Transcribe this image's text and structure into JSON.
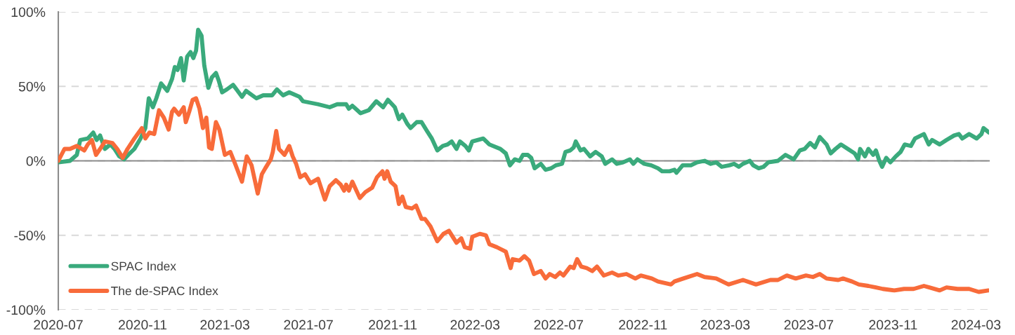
{
  "chart_data": {
    "type": "line",
    "series": [
      {
        "name": "SPAC Index",
        "color": "#3aaa7c",
        "x": [
          "2020-07-01",
          "2020-07-18",
          "2020-07-28",
          "2020-08-02",
          "2020-08-13",
          "2020-08-21",
          "2020-08-26",
          "2020-08-31",
          "2020-09-07",
          "2020-09-15",
          "2020-09-21",
          "2020-09-28",
          "2020-10-05",
          "2020-10-11",
          "2020-10-20",
          "2020-10-29",
          "2020-11-05",
          "2020-11-10",
          "2020-11-16",
          "2020-11-21",
          "2020-11-28",
          "2020-12-07",
          "2020-12-14",
          "2020-12-18",
          "2020-12-22",
          "2020-12-27",
          "2020-12-31",
          "2021-01-05",
          "2021-01-10",
          "2021-01-14",
          "2021-01-18",
          "2021-01-21",
          "2021-01-26",
          "2021-01-30",
          "2021-02-05",
          "2021-02-10",
          "2021-02-16",
          "2021-02-20",
          "2021-02-25",
          "2021-03-04",
          "2021-03-13",
          "2021-03-18",
          "2021-03-26",
          "2021-04-01",
          "2021-04-16",
          "2021-04-26",
          "2021-05-09",
          "2021-05-16",
          "2021-05-25",
          "2021-06-03",
          "2021-06-18",
          "2021-06-23",
          "2021-07-15",
          "2021-08-01",
          "2021-08-12",
          "2021-08-25",
          "2021-08-29",
          "2021-09-03",
          "2021-09-15",
          "2021-09-27",
          "2021-10-08",
          "2021-10-18",
          "2021-10-25",
          "2021-11-04",
          "2021-11-10",
          "2021-11-15",
          "2021-11-22",
          "2021-11-27",
          "2021-12-06",
          "2021-12-13",
          "2021-12-21",
          "2021-12-28",
          "2022-01-05",
          "2022-01-13",
          "2022-01-20",
          "2022-01-26",
          "2022-02-02",
          "2022-02-07",
          "2022-02-15",
          "2022-02-20",
          "2022-02-25",
          "2022-03-13",
          "2022-03-22",
          "2022-04-07",
          "2022-04-15",
          "2022-04-21",
          "2022-04-28",
          "2022-05-05",
          "2022-05-10",
          "2022-05-17",
          "2022-05-22",
          "2022-05-27",
          "2022-06-05",
          "2022-06-12",
          "2022-06-20",
          "2022-06-27",
          "2022-07-06",
          "2022-07-11",
          "2022-07-18",
          "2022-07-23",
          "2022-07-26",
          "2022-08-02",
          "2022-08-07",
          "2022-08-16",
          "2022-08-24",
          "2022-09-02",
          "2022-09-07",
          "2022-09-17",
          "2022-09-24",
          "2022-10-03",
          "2022-10-13",
          "2022-10-18",
          "2022-10-24",
          "2022-11-03",
          "2022-11-13",
          "2022-11-23",
          "2022-11-29",
          "2022-12-10",
          "2022-12-17",
          "2022-12-20",
          "2022-12-29",
          "2023-01-10",
          "2023-01-19",
          "2023-01-30",
          "2023-02-08",
          "2023-02-16",
          "2023-02-24",
          "2023-03-07",
          "2023-03-14",
          "2023-03-21",
          "2023-03-27",
          "2023-04-06",
          "2023-04-11",
          "2023-04-19",
          "2023-04-26",
          "2023-05-03",
          "2023-05-17",
          "2023-05-28",
          "2023-06-09",
          "2023-06-18",
          "2023-06-25",
          "2023-07-03",
          "2023-07-10",
          "2023-07-17",
          "2023-07-27",
          "2023-08-02",
          "2023-08-09",
          "2023-08-17",
          "2023-08-27",
          "2023-09-06",
          "2023-09-11",
          "2023-09-14",
          "2023-09-21",
          "2023-09-26",
          "2023-10-03",
          "2023-10-07",
          "2023-10-12",
          "2023-10-16",
          "2023-10-22",
          "2023-10-28",
          "2023-11-05",
          "2023-11-12",
          "2023-11-18",
          "2023-11-27",
          "2023-12-03",
          "2023-12-16",
          "2023-12-23",
          "2023-12-28",
          "2024-01-08",
          "2024-01-18",
          "2024-01-29",
          "2024-02-05",
          "2024-02-10",
          "2024-02-20",
          "2024-03-02",
          "2024-03-09",
          "2024-03-12",
          "2024-03-20"
        ],
        "values": [
          -1,
          0,
          4,
          14,
          15,
          19,
          14,
          17,
          8,
          11,
          8,
          3,
          1,
          4,
          8,
          15,
          22,
          42,
          36,
          42,
          52,
          47,
          55,
          63,
          61,
          69,
          54,
          70,
          73,
          69,
          74,
          88,
          84,
          64,
          49,
          56,
          59,
          54,
          46,
          48,
          51,
          48,
          43,
          47,
          42,
          44,
          44,
          48,
          44,
          46,
          43,
          40,
          38,
          36,
          38,
          38,
          35,
          37,
          32,
          34,
          40,
          36,
          41,
          36,
          28,
          31,
          25,
          22,
          26,
          26,
          20,
          15,
          7,
          10,
          11,
          13,
          8,
          13,
          10,
          7,
          13,
          15,
          11,
          8,
          5,
          -3,
          1,
          0,
          4,
          4,
          2,
          -5,
          -2,
          -6,
          -5,
          -3,
          -2,
          6,
          7,
          9,
          13,
          7,
          8,
          3,
          6,
          3,
          -2,
          1,
          -2,
          -1,
          1,
          -2,
          1,
          -2,
          -3,
          -5,
          -7,
          -7,
          -6,
          -8,
          -3,
          -3,
          -1,
          0,
          -2,
          -1,
          -4,
          -3,
          -2,
          -4,
          -2,
          0,
          -3,
          -5,
          -4,
          -1,
          0,
          4,
          1,
          7,
          8,
          12,
          9,
          16,
          11,
          5,
          8,
          11,
          8,
          5,
          1,
          8,
          3,
          8,
          4,
          7,
          0,
          -4,
          2,
          -1,
          3,
          6,
          11,
          10,
          15,
          18,
          11,
          14,
          11,
          14,
          17,
          18,
          15,
          18,
          15,
          18,
          22,
          19
        ]
      },
      {
        "name": "The de-SPAC Index",
        "color": "#f86b3a",
        "x": [
          "2020-07-01",
          "2020-07-10",
          "2020-07-18",
          "2020-07-28",
          "2020-08-08",
          "2020-08-13",
          "2020-08-19",
          "2020-08-25",
          "2020-08-31",
          "2020-09-07",
          "2020-09-18",
          "2020-09-25",
          "2020-10-03",
          "2020-10-10",
          "2020-10-20",
          "2020-10-31",
          "2020-11-05",
          "2020-11-11",
          "2020-11-18",
          "2020-11-25",
          "2020-12-02",
          "2020-12-09",
          "2020-12-14",
          "2020-12-17",
          "2020-12-24",
          "2020-12-31",
          "2021-01-03",
          "2021-01-08",
          "2021-01-13",
          "2021-01-18",
          "2021-01-23",
          "2021-01-28",
          "2021-02-02",
          "2021-02-06",
          "2021-02-10",
          "2021-02-16",
          "2021-02-21",
          "2021-03-01",
          "2021-03-09",
          "2021-03-16",
          "2021-03-26",
          "2021-04-02",
          "2021-04-09",
          "2021-04-18",
          "2021-04-24",
          "2021-04-29",
          "2021-05-07",
          "2021-05-10",
          "2021-05-15",
          "2021-05-19",
          "2021-05-27",
          "2021-06-03",
          "2021-06-08",
          "2021-06-13",
          "2021-06-19",
          "2021-06-26",
          "2021-07-04",
          "2021-07-15",
          "2021-07-25",
          "2021-08-01",
          "2021-08-10",
          "2021-08-17",
          "2021-08-22",
          "2021-08-25",
          "2021-08-29",
          "2021-09-03",
          "2021-09-14",
          "2021-09-22",
          "2021-10-02",
          "2021-10-09",
          "2021-10-17",
          "2021-10-20",
          "2021-10-24",
          "2021-10-29",
          "2021-11-05",
          "2021-11-10",
          "2021-11-15",
          "2021-11-20",
          "2021-11-29",
          "2021-12-05",
          "2021-12-13",
          "2021-12-18",
          "2021-12-26",
          "2022-01-05",
          "2022-01-14",
          "2022-01-22",
          "2022-02-02",
          "2022-02-09",
          "2022-02-14",
          "2022-02-22",
          "2022-02-25",
          "2022-03-08",
          "2022-03-17",
          "2022-03-22",
          "2022-04-02",
          "2022-04-15",
          "2022-04-22",
          "2022-04-25",
          "2022-05-05",
          "2022-05-12",
          "2022-05-19",
          "2022-05-26",
          "2022-06-05",
          "2022-06-12",
          "2022-06-18",
          "2022-06-26",
          "2022-07-03",
          "2022-07-08",
          "2022-07-18",
          "2022-07-23",
          "2022-07-28",
          "2022-08-03",
          "2022-08-11",
          "2022-08-19",
          "2022-08-26",
          "2022-09-05",
          "2022-09-17",
          "2022-09-26",
          "2022-10-08",
          "2022-10-21",
          "2022-10-29",
          "2022-11-14",
          "2022-11-23",
          "2022-12-12",
          "2022-12-17",
          "2022-12-30",
          "2023-01-19",
          "2023-01-30",
          "2023-02-16",
          "2023-03-06",
          "2023-03-27",
          "2023-04-15",
          "2023-05-06",
          "2023-05-17",
          "2023-05-30",
          "2023-06-12",
          "2023-06-27",
          "2023-07-07",
          "2023-07-17",
          "2023-07-27",
          "2023-08-13",
          "2023-08-20",
          "2023-09-02",
          "2023-09-12",
          "2023-09-26",
          "2023-10-07",
          "2023-10-17",
          "2023-11-03",
          "2023-11-17",
          "2023-12-01",
          "2023-12-16",
          "2023-12-24",
          "2024-01-08",
          "2024-01-18",
          "2024-02-03",
          "2024-02-20",
          "2024-03-05",
          "2024-03-19"
        ],
        "values": [
          0,
          8,
          8,
          10,
          7,
          11,
          14,
          4,
          8,
          13,
          12,
          8,
          2,
          8,
          15,
          22,
          15,
          19,
          18,
          34,
          29,
          21,
          33,
          35,
          31,
          36,
          26,
          33,
          41,
          42,
          35,
          22,
          29,
          9,
          8,
          26,
          21,
          4,
          6,
          -2,
          -14,
          3,
          -3,
          -22,
          -9,
          -5,
          1,
          6,
          20,
          8,
          4,
          10,
          3,
          -2,
          -11,
          -9,
          -15,
          -12,
          -26,
          -17,
          -13,
          -16,
          -20,
          -16,
          -20,
          -14,
          -25,
          -21,
          -18,
          -11,
          -7,
          -12,
          -7,
          -14,
          -17,
          -29,
          -24,
          -31,
          -32,
          -30,
          -39,
          -39,
          -44,
          -54,
          -49,
          -47,
          -55,
          -52,
          -58,
          -59,
          -51,
          -49,
          -50,
          -56,
          -58,
          -61,
          -72,
          -66,
          -67,
          -64,
          -67,
          -76,
          -74,
          -79,
          -76,
          -78,
          -75,
          -77,
          -71,
          -72,
          -66,
          -71,
          -72,
          -74,
          -71,
          -77,
          -75,
          -77,
          -76,
          -79,
          -77,
          -79,
          -81,
          -83,
          -81,
          -79,
          -76,
          -78,
          -79,
          -83,
          -80,
          -83,
          -80,
          -80,
          -77,
          -79,
          -77,
          -78,
          -76,
          -79,
          -80,
          -79,
          -81,
          -83,
          -84,
          -85,
          -86,
          -87,
          -86,
          -86,
          -84,
          -85,
          -87,
          -85,
          -86,
          -86,
          -88,
          -87
        ]
      }
    ],
    "xlim": [
      "2020-07-01",
      "2024-03-20"
    ],
    "xticks": [
      "2020-07",
      "2020-11",
      "2021-03",
      "2021-07",
      "2021-11",
      "2022-03",
      "2022-07",
      "2022-11",
      "2023-03",
      "2023-07",
      "2023-11",
      "2024-03"
    ],
    "ylim": [
      -100,
      100
    ],
    "yticks": [
      {
        "value": -100,
        "label": "-100%"
      },
      {
        "value": -50,
        "label": "-50%"
      },
      {
        "value": 0,
        "label": "0%"
      },
      {
        "value": 50,
        "label": "50%"
      },
      {
        "value": 100,
        "label": "100%"
      }
    ],
    "grid": "y",
    "legend": "bottom left",
    "line_style": "solid"
  }
}
